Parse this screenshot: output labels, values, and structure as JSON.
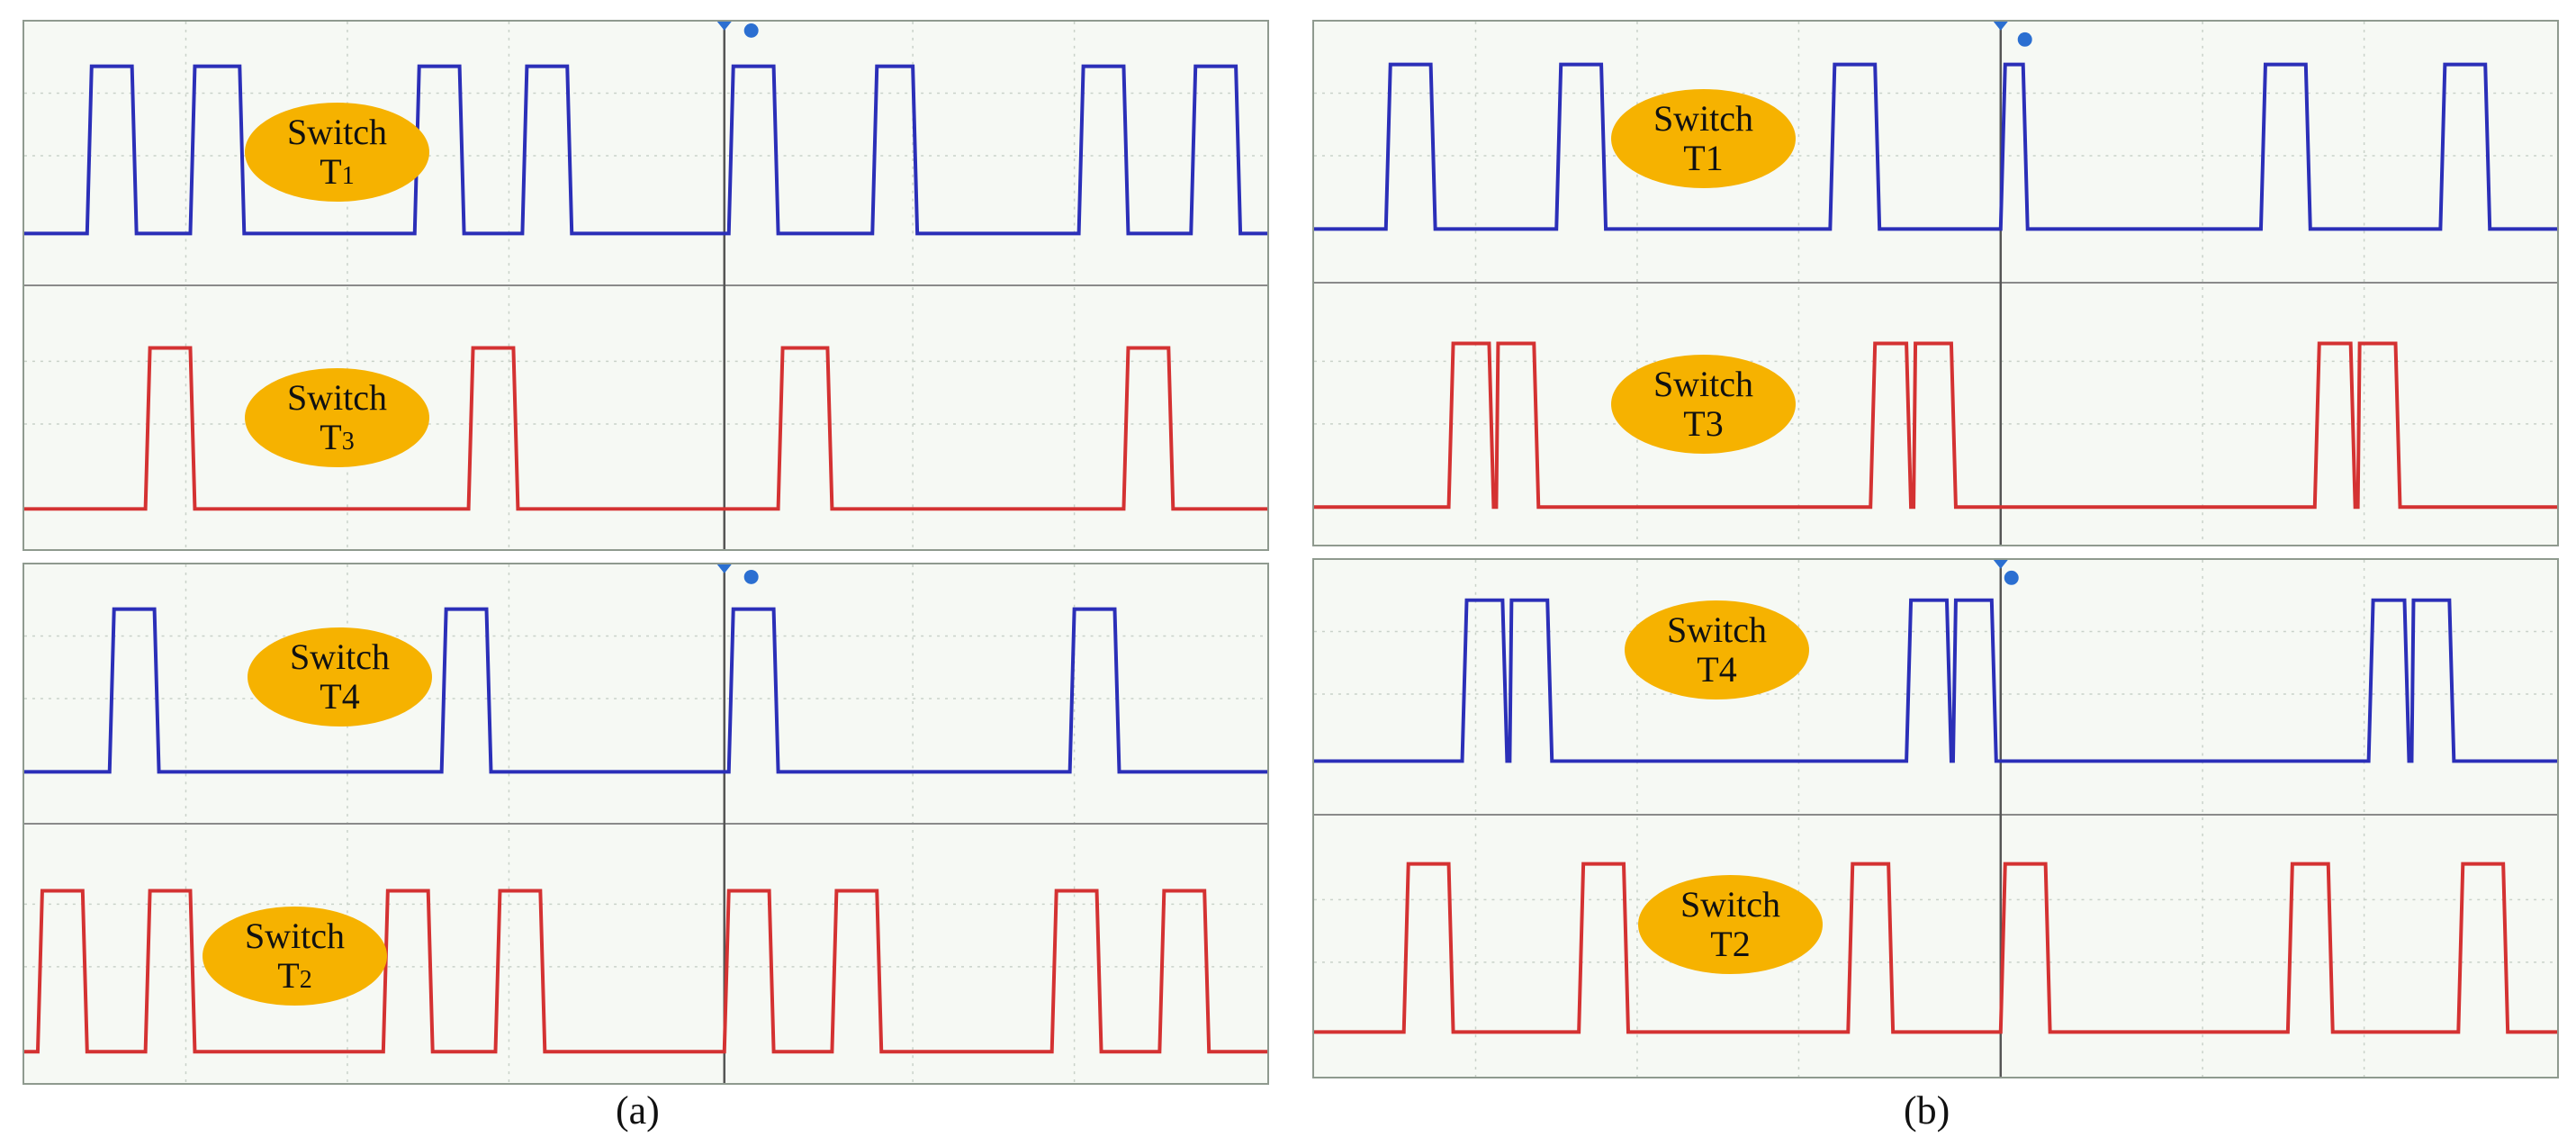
{
  "panels": {
    "a": {
      "caption": "(a)",
      "top": {
        "wave1": {
          "label": "Switch",
          "name": "T",
          "sub": "1"
        },
        "wave2": {
          "label": "Switch",
          "name": "T",
          "sub": "3"
        }
      },
      "bottom": {
        "wave1": {
          "label": "Switch",
          "name": "T4",
          "sub": ""
        },
        "wave2": {
          "label": "Switch",
          "name": "T",
          "sub": "2"
        }
      }
    },
    "b": {
      "caption": "(b)",
      "top": {
        "wave1": {
          "label": "Switch",
          "name": "T1",
          "sub": ""
        },
        "wave2": {
          "label": "Switch",
          "name": "T3",
          "sub": ""
        }
      },
      "bottom": {
        "wave1": {
          "label": "Switch",
          "name": "T4",
          "sub": ""
        },
        "wave2": {
          "label": "Switch",
          "name": "T2",
          "sub": ""
        }
      }
    }
  },
  "colors": {
    "blue": "#2b2fb8",
    "red": "#d43232",
    "label_bg": "#f6b200",
    "screen": "#f6f9f4"
  },
  "icons": [
    "trigger-marker-icon"
  ]
}
